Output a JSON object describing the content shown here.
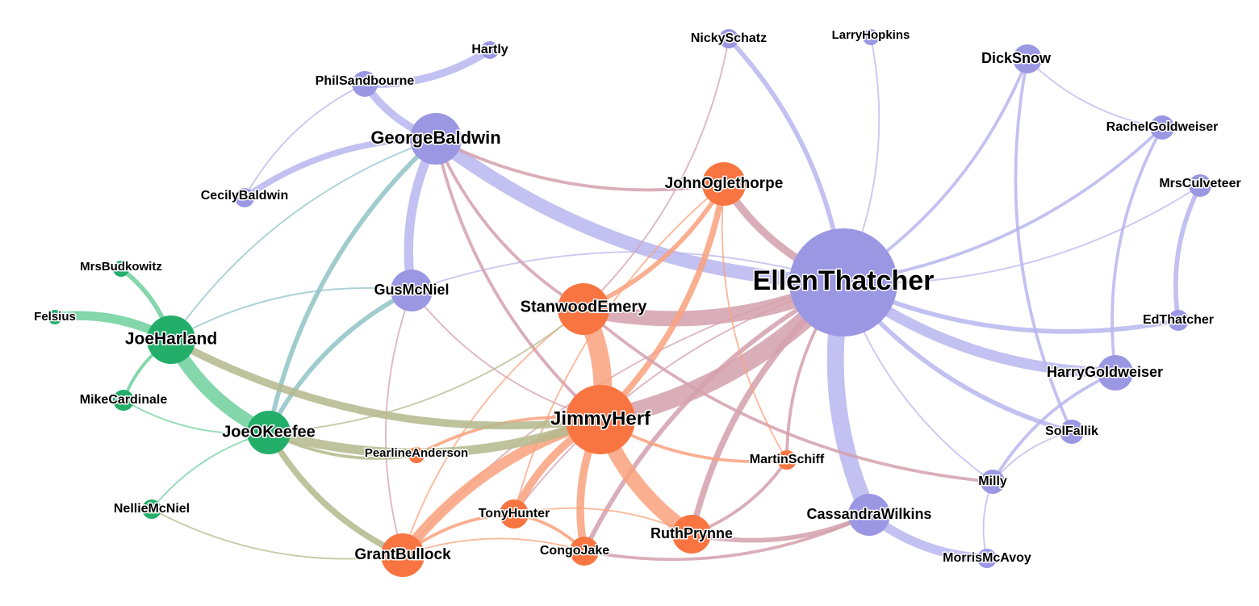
{
  "colors": {
    "purple": "#9b97e3",
    "orange": "#f87541",
    "green": "#23ae6a",
    "edge_purple": "#b9b6ee",
    "edge_orange": "#f9a17e",
    "edge_green": "#6fcf9c",
    "edge_mauve": "#d4a0ac",
    "edge_olive": "#b4b98c",
    "edge_teal": "#8fc3c5"
  },
  "nodes": [
    {
      "id": "EllenThatcher",
      "label": "EllenThatcher",
      "group": "purple"
    },
    {
      "id": "GeorgeBaldwin",
      "label": "GeorgeBaldwin",
      "group": "purple"
    },
    {
      "id": "GusMcNiel",
      "label": "GusMcNiel",
      "group": "purple"
    },
    {
      "id": "PhilSandbourne",
      "label": "PhilSandbourne",
      "group": "purple"
    },
    {
      "id": "Hartly",
      "label": "Hartly",
      "group": "purple"
    },
    {
      "id": "CecilyBaldwin",
      "label": "CecilyBaldwin",
      "group": "purple"
    },
    {
      "id": "NickySchatz",
      "label": "NickySchatz",
      "group": "purple"
    },
    {
      "id": "LarryHopkins",
      "label": "LarryHopkins",
      "group": "purple"
    },
    {
      "id": "DickSnow",
      "label": "DickSnow",
      "group": "purple"
    },
    {
      "id": "RachelGoldweiser",
      "label": "RachelGoldweiser",
      "group": "purple"
    },
    {
      "id": "MrsCulveteer",
      "label": "MrsCulveteer",
      "group": "purple"
    },
    {
      "id": "EdThatcher",
      "label": "EdThatcher",
      "group": "purple"
    },
    {
      "id": "HarryGoldweiser",
      "label": "HarryGoldweiser",
      "group": "purple"
    },
    {
      "id": "SolFallik",
      "label": "SolFallik",
      "group": "purple"
    },
    {
      "id": "Milly",
      "label": "Milly",
      "group": "purple"
    },
    {
      "id": "CassandraWilkins",
      "label": "CassandraWilkins",
      "group": "purple"
    },
    {
      "id": "MorrisMcAvoy",
      "label": "MorrisMcAvoy",
      "group": "purple"
    },
    {
      "id": "JimmyHerf",
      "label": "JimmyHerf",
      "group": "orange"
    },
    {
      "id": "StanwoodEmery",
      "label": "StanwoodEmery",
      "group": "orange"
    },
    {
      "id": "JohnOglethorpe",
      "label": "JohnOglethorpe",
      "group": "orange"
    },
    {
      "id": "MartinSchiff",
      "label": "MartinSchiff",
      "group": "orange"
    },
    {
      "id": "PearlineAnderson",
      "label": "PearlineAnderson",
      "group": "orange"
    },
    {
      "id": "TonyHunter",
      "label": "TonyHunter",
      "group": "orange"
    },
    {
      "id": "CongoJake",
      "label": "CongoJake",
      "group": "orange"
    },
    {
      "id": "RuthPrynne",
      "label": "RuthPrynne",
      "group": "orange"
    },
    {
      "id": "GrantBullock",
      "label": "GrantBullock",
      "group": "orange"
    },
    {
      "id": "JoeHarland",
      "label": "JoeHarland",
      "group": "green"
    },
    {
      "id": "JoeOKeefee",
      "label": "JoeOKeefee",
      "group": "green"
    },
    {
      "id": "MrsBudkowitz",
      "label": "MrsBudkowitz",
      "group": "green"
    },
    {
      "id": "Felsius",
      "label": "Felsius",
      "group": "green"
    },
    {
      "id": "MikeCardinale",
      "label": "MikeCardinale",
      "group": "green"
    },
    {
      "id": "NellieMcNiel",
      "label": "NellieMcNiel",
      "group": "green"
    }
  ],
  "edges": [
    {
      "source": "GeorgeBaldwin",
      "target": "EllenThatcher",
      "weight": 9,
      "color": "edge_purple"
    },
    {
      "source": "StanwoodEmery",
      "target": "EllenThatcher",
      "weight": 10,
      "color": "edge_mauve"
    },
    {
      "source": "JimmyHerf",
      "target": "EllenThatcher",
      "weight": 12,
      "color": "edge_mauve"
    },
    {
      "source": "EllenThatcher",
      "target": "CassandraWilkins",
      "weight": 11,
      "color": "edge_purple"
    },
    {
      "source": "EllenThatcher",
      "target": "HarryGoldweiser",
      "weight": 7,
      "color": "edge_purple"
    },
    {
      "source": "EllenThatcher",
      "target": "EdThatcher",
      "weight": 3,
      "color": "edge_purple"
    },
    {
      "source": "EllenThatcher",
      "target": "SolFallik",
      "weight": 3,
      "color": "edge_purple"
    },
    {
      "source": "EllenThatcher",
      "target": "DickSnow",
      "weight": 2,
      "color": "edge_purple"
    },
    {
      "source": "EllenThatcher",
      "target": "RachelGoldweiser",
      "weight": 2,
      "color": "edge_purple"
    },
    {
      "source": "EllenThatcher",
      "target": "NickySchatz",
      "weight": 3,
      "color": "edge_purple"
    },
    {
      "source": "EllenThatcher",
      "target": "LarryHopkins",
      "weight": 1,
      "color": "edge_purple"
    },
    {
      "source": "EllenThatcher",
      "target": "MrsCulveteer",
      "weight": 1,
      "color": "edge_purple"
    },
    {
      "source": "EllenThatcher",
      "target": "Milly",
      "weight": 1,
      "color": "edge_purple"
    },
    {
      "source": "EllenThatcher",
      "target": "GusMcNiel",
      "weight": 1,
      "color": "edge_purple"
    },
    {
      "source": "JohnOglethorpe",
      "target": "EllenThatcher",
      "weight": 5,
      "color": "edge_mauve"
    },
    {
      "source": "EllenThatcher",
      "target": "RuthPrynne",
      "weight": 4,
      "color": "edge_mauve"
    },
    {
      "source": "EllenThatcher",
      "target": "CongoJake",
      "weight": 3,
      "color": "edge_mauve"
    },
    {
      "source": "EllenThatcher",
      "target": "MartinSchiff",
      "weight": 2,
      "color": "edge_mauve"
    },
    {
      "source": "EllenThatcher",
      "target": "TonyHunter",
      "weight": 1,
      "color": "edge_mauve"
    },
    {
      "source": "EllenThatcher",
      "target": "GrantBullock",
      "weight": 1,
      "color": "edge_mauve"
    },
    {
      "source": "PhilSandbourne",
      "target": "Hartly",
      "weight": 5,
      "color": "edge_purple"
    },
    {
      "source": "PhilSandbourne",
      "target": "GeorgeBaldwin",
      "weight": 5,
      "color": "edge_purple"
    },
    {
      "source": "GeorgeBaldwin",
      "target": "CecilyBaldwin",
      "weight": 4,
      "color": "edge_purple"
    },
    {
      "source": "GeorgeBaldwin",
      "target": "GusMcNiel",
      "weight": 6,
      "color": "edge_purple"
    },
    {
      "source": "PhilSandbourne",
      "target": "CecilyBaldwin",
      "weight": 1,
      "color": "edge_purple"
    },
    {
      "source": "GeorgeBaldwin",
      "target": "JohnOglethorpe",
      "weight": 2,
      "color": "edge_mauve"
    },
    {
      "source": "GeorgeBaldwin",
      "target": "StanwoodEmery",
      "weight": 2,
      "color": "edge_mauve"
    },
    {
      "source": "GeorgeBaldwin",
      "target": "JimmyHerf",
      "weight": 2,
      "color": "edge_mauve"
    },
    {
      "source": "GeorgeBaldwin",
      "target": "JoeOKeefee",
      "weight": 3,
      "color": "edge_teal"
    },
    {
      "source": "GeorgeBaldwin",
      "target": "JoeHarland",
      "weight": 1,
      "color": "edge_teal"
    },
    {
      "source": "GusMcNiel",
      "target": "JoeOKeefee",
      "weight": 3,
      "color": "edge_teal"
    },
    {
      "source": "GusMcNiel",
      "target": "JoeHarland",
      "weight": 1,
      "color": "edge_teal"
    },
    {
      "source": "GusMcNiel",
      "target": "JimmyHerf",
      "weight": 1,
      "color": "edge_mauve"
    },
    {
      "source": "GusMcNiel",
      "target": "GrantBullock",
      "weight": 1,
      "color": "edge_mauve"
    },
    {
      "source": "DickSnow",
      "target": "SolFallik",
      "weight": 2,
      "color": "edge_purple"
    },
    {
      "source": "DickSnow",
      "target": "RachelGoldweiser",
      "weight": 1,
      "color": "edge_purple"
    },
    {
      "source": "RachelGoldweiser",
      "target": "HarryGoldweiser",
      "weight": 2,
      "color": "edge_purple"
    },
    {
      "source": "MrsCulveteer",
      "target": "EdThatcher",
      "weight": 3,
      "color": "edge_purple"
    },
    {
      "source": "HarryGoldweiser",
      "target": "Milly",
      "weight": 2,
      "color": "edge_purple"
    },
    {
      "source": "SolFallik",
      "target": "Milly",
      "weight": 1,
      "color": "edge_purple"
    },
    {
      "source": "CassandraWilkins",
      "target": "MorrisMcAvoy",
      "weight": 6,
      "color": "edge_purple"
    },
    {
      "source": "Milly",
      "target": "MorrisMcAvoy",
      "weight": 1,
      "color": "edge_purple"
    },
    {
      "source": "JimmyHerf",
      "target": "StanwoodEmery",
      "weight": 12,
      "color": "edge_orange"
    },
    {
      "source": "JimmyHerf",
      "target": "RuthPrynne",
      "weight": 10,
      "color": "edge_orange"
    },
    {
      "source": "JimmyHerf",
      "target": "GrantBullock",
      "weight": 7,
      "color": "edge_orange"
    },
    {
      "source": "JimmyHerf",
      "target": "TonyHunter",
      "weight": 5,
      "color": "edge_orange"
    },
    {
      "source": "JimmyHerf",
      "target": "CongoJake",
      "weight": 5,
      "color": "edge_orange"
    },
    {
      "source": "JimmyHerf",
      "target": "JohnOglethorpe",
      "weight": 4,
      "color": "edge_orange"
    },
    {
      "source": "JimmyHerf",
      "target": "MartinSchiff",
      "weight": 2,
      "color": "edge_orange"
    },
    {
      "source": "JimmyHerf",
      "target": "PearlineAnderson",
      "weight": 2,
      "color": "edge_orange"
    },
    {
      "source": "StanwoodEmery",
      "target": "JohnOglethorpe",
      "weight": 3,
      "color": "edge_orange"
    },
    {
      "source": "StanwoodEmery",
      "target": "NickySchatz",
      "weight": 1,
      "color": "edge_mauve"
    },
    {
      "source": "StanwoodEmery",
      "target": "Milly",
      "weight": 2,
      "color": "edge_mauve"
    },
    {
      "source": "StanwoodEmery",
      "target": "GrantBullock",
      "weight": 1,
      "color": "edge_orange"
    },
    {
      "source": "JohnOglethorpe",
      "target": "MartinSchiff",
      "weight": 1,
      "color": "edge_orange"
    },
    {
      "source": "JohnOglethorpe",
      "target": "TonyHunter",
      "weight": 1,
      "color": "edge_orange"
    },
    {
      "source": "RuthPrynne",
      "target": "CassandraWilkins",
      "weight": 3,
      "color": "edge_mauve"
    },
    {
      "source": "RuthPrynne",
      "target": "MartinSchiff",
      "weight": 2,
      "color": "edge_mauve"
    },
    {
      "source": "RuthPrynne",
      "target": "TonyHunter",
      "weight": 1,
      "color": "edge_orange"
    },
    {
      "source": "CongoJake",
      "target": "TonyHunter",
      "weight": 2,
      "color": "edge_orange"
    },
    {
      "source": "CongoJake",
      "target": "CassandraWilkins",
      "weight": 2,
      "color": "edge_mauve"
    },
    {
      "source": "TonyHunter",
      "target": "GrantBullock",
      "weight": 2,
      "color": "edge_orange"
    },
    {
      "source": "CongoJake",
      "target": "GrantBullock",
      "weight": 1,
      "color": "edge_orange"
    },
    {
      "source": "JoeHarland",
      "target": "JoeOKeefee",
      "weight": 9,
      "color": "edge_green"
    },
    {
      "source": "JoeHarland",
      "target": "Felsius",
      "weight": 6,
      "color": "edge_green"
    },
    {
      "source": "JoeHarland",
      "target": "MrsBudkowitz",
      "weight": 3,
      "color": "edge_green"
    },
    {
      "source": "JoeHarland",
      "target": "MikeCardinale",
      "weight": 2,
      "color": "edge_green"
    },
    {
      "source": "MikeCardinale",
      "target": "JoeOKeefee",
      "weight": 1,
      "color": "edge_green"
    },
    {
      "source": "JoeOKeefee",
      "target": "NellieMcNiel",
      "weight": 1,
      "color": "edge_green"
    },
    {
      "source": "JoeHarland",
      "target": "JimmyHerf",
      "weight": 5,
      "color": "edge_olive"
    },
    {
      "source": "JoeOKeefee",
      "target": "JimmyHerf",
      "weight": 6,
      "color": "edge_olive"
    },
    {
      "source": "JoeOKeefee",
      "target": "GrantBullock",
      "weight": 4,
      "color": "edge_olive"
    },
    {
      "source": "JoeOKeefee",
      "target": "PearlineAnderson",
      "weight": 2,
      "color": "edge_olive"
    },
    {
      "source": "NellieMcNiel",
      "target": "GrantBullock",
      "weight": 1,
      "color": "edge_olive"
    },
    {
      "source": "JoeOKeefee",
      "target": "StanwoodEmery",
      "weight": 1,
      "color": "edge_olive"
    }
  ]
}
